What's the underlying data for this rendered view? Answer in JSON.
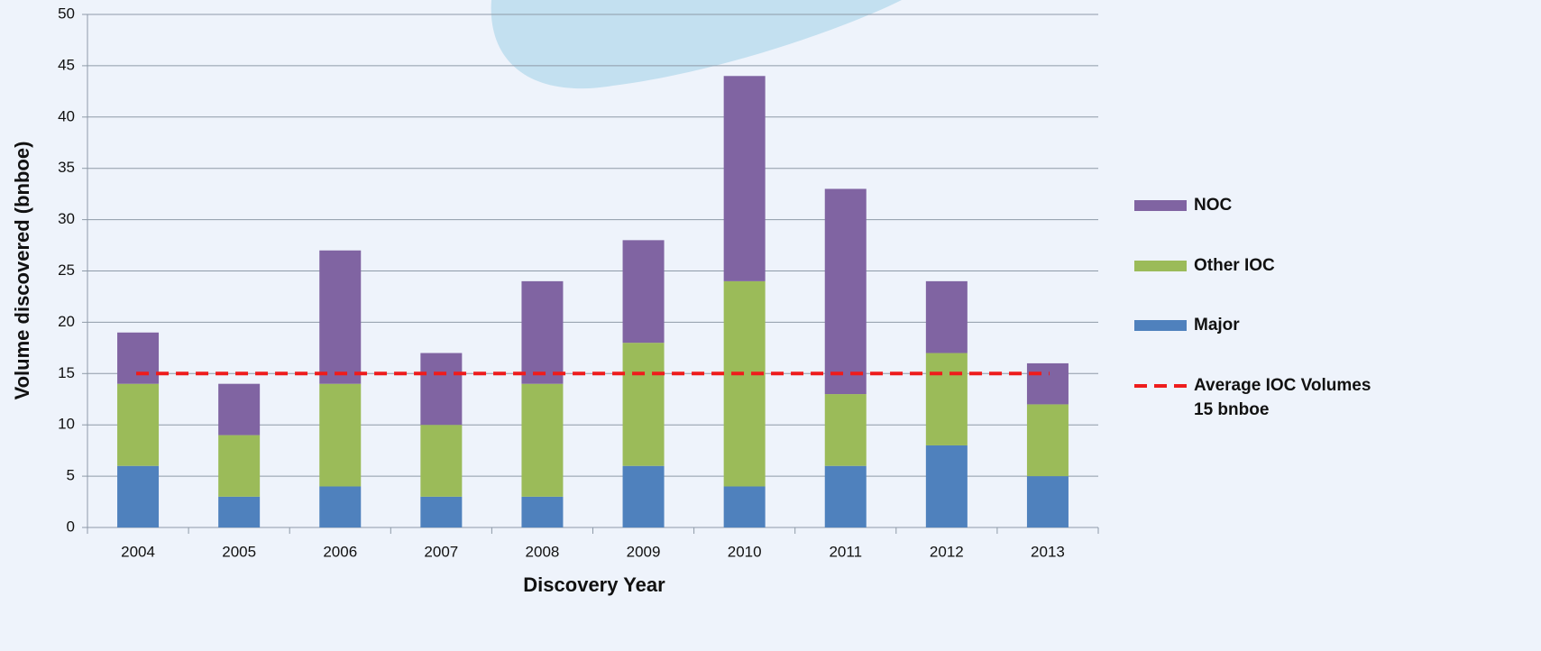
{
  "chart_data": {
    "type": "stacked_bar",
    "y_label": "Volume discovered (bnboe)",
    "x_label": "Discovery Year",
    "categories": [
      "2004",
      "2005",
      "2006",
      "2007",
      "2008",
      "2009",
      "2010",
      "2011",
      "2012",
      "2013"
    ],
    "series": [
      {
        "name": "Major",
        "color": "#4f81bd",
        "values": [
          6,
          3,
          4,
          3,
          3,
          6,
          4,
          6,
          8,
          5
        ]
      },
      {
        "name": "Other IOC",
        "color": "#9bbb59",
        "values": [
          8,
          6,
          10,
          7,
          11,
          12,
          20,
          7,
          9,
          7
        ]
      },
      {
        "name": "NOC",
        "color": "#8064a2",
        "values": [
          5,
          5,
          13,
          7,
          10,
          10,
          20,
          20,
          7,
          4
        ]
      }
    ],
    "average": {
      "name": "Average IOC Volumes",
      "value": 15,
      "value_label": "15 bnboe",
      "color": "#ee1c1c"
    },
    "ylim": [
      0,
      50
    ],
    "yticks": [
      0,
      5,
      10,
      15,
      20,
      25,
      30,
      35,
      40,
      45,
      50
    ],
    "grid": true
  }
}
